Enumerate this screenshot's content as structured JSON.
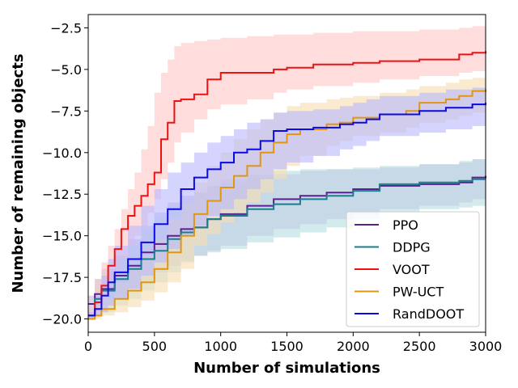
{
  "chart_data": {
    "type": "line",
    "title": "",
    "xlabel": "Number of simulations",
    "ylabel": "Number of remaining objects",
    "xlim": [
      0,
      3000
    ],
    "ylim": [
      -20.8,
      -1.7
    ],
    "xticks": [
      0,
      500,
      1000,
      1500,
      2000,
      2500,
      3000
    ],
    "xtick_labels": [
      "0",
      "500",
      "1000",
      "1500",
      "2000",
      "2500",
      "3000"
    ],
    "yticks": [
      -20.0,
      -17.5,
      -15.0,
      -12.5,
      -10.0,
      -7.5,
      -5.0,
      -2.5
    ],
    "ytick_labels": [
      "−20.0",
      "−17.5",
      "−15.0",
      "−12.5",
      "−10.0",
      "−7.5",
      "−5.0",
      "−2.5"
    ],
    "grid": false,
    "legend_position": "bottom-right",
    "series": [
      {
        "name": "PPO",
        "color": "#5b1f91",
        "x": [
          0,
          50,
          100,
          200,
          300,
          400,
          500,
          600,
          700,
          800,
          900,
          1000,
          1200,
          1400,
          1600,
          1800,
          2000,
          2200,
          2500,
          2800,
          2900,
          3000
        ],
        "y": [
          -19.1,
          -18.5,
          -18.2,
          -17.4,
          -16.8,
          -16.0,
          -15.5,
          -15.0,
          -14.6,
          -14.5,
          -14.0,
          -13.7,
          -13.2,
          -12.8,
          -12.6,
          -12.4,
          -12.2,
          -12.0,
          -11.9,
          -11.8,
          -11.5,
          -11.4
        ],
        "band_low": [
          -19.6,
          -19.4,
          -19.2,
          -18.6,
          -18.2,
          -17.8,
          -17.2,
          -16.8,
          -16.5,
          -16.2,
          -15.9,
          -15.6,
          -15.0,
          -14.6,
          -14.3,
          -14.0,
          -13.7,
          -13.4,
          -13.2,
          -13.0,
          -12.8,
          -12.6
        ],
        "band_high": [
          -18.6,
          -17.6,
          -17.0,
          -16.2,
          -15.2,
          -14.4,
          -13.6,
          -13.0,
          -12.6,
          -12.4,
          -12.0,
          -11.8,
          -11.5,
          -11.3,
          -11.1,
          -11.0,
          -11.0,
          -10.9,
          -10.7,
          -10.6,
          -10.4,
          -10.3
        ],
        "band_color": "#c8b4e0"
      },
      {
        "name": "DDPG",
        "color": "#1a7f8c",
        "x": [
          0,
          50,
          100,
          200,
          300,
          400,
          500,
          600,
          700,
          800,
          900,
          1000,
          1200,
          1400,
          1600,
          1800,
          2000,
          2200,
          2500,
          2800,
          2900,
          3000
        ],
        "y": [
          -19.8,
          -18.8,
          -18.3,
          -17.6,
          -17.0,
          -16.4,
          -15.9,
          -15.2,
          -14.8,
          -14.5,
          -14.0,
          -13.8,
          -13.4,
          -13.1,
          -12.8,
          -12.6,
          -12.3,
          -11.9,
          -11.8,
          -11.7,
          -11.6,
          -11.6
        ],
        "band_low": [
          -20.0,
          -19.8,
          -19.6,
          -19.2,
          -18.8,
          -18.3,
          -17.8,
          -17.2,
          -16.6,
          -16.2,
          -16.0,
          -15.8,
          -15.4,
          -15.1,
          -14.8,
          -14.5,
          -14.0,
          -13.6,
          -13.4,
          -13.3,
          -13.2,
          -13.1
        ],
        "band_high": [
          -19.4,
          -17.6,
          -17.2,
          -16.4,
          -15.6,
          -14.6,
          -13.8,
          -13.2,
          -12.9,
          -12.5,
          -12.0,
          -11.6,
          -11.3,
          -11.1,
          -11.0,
          -11.0,
          -10.9,
          -10.8,
          -10.7,
          -10.5,
          -10.4,
          -10.3
        ],
        "band_color": "#b7dde3"
      },
      {
        "name": "VOOT",
        "color": "#ee1111",
        "x": [
          0,
          50,
          100,
          150,
          200,
          250,
          300,
          350,
          400,
          450,
          500,
          550,
          600,
          650,
          700,
          800,
          900,
          1000,
          1200,
          1400,
          1500,
          1700,
          2000,
          2200,
          2500,
          2800,
          2900,
          3000
        ],
        "y": [
          -19.8,
          -19.0,
          -18.0,
          -16.8,
          -15.8,
          -14.6,
          -13.8,
          -13.2,
          -12.6,
          -11.9,
          -11.2,
          -9.2,
          -8.2,
          -6.9,
          -6.8,
          -6.5,
          -5.6,
          -5.2,
          -5.2,
          -5.0,
          -4.9,
          -4.7,
          -4.6,
          -4.5,
          -4.4,
          -4.1,
          -4.0,
          -3.9
        ],
        "band_low": [
          -20.0,
          -19.6,
          -18.8,
          -18.0,
          -17.2,
          -16.4,
          -15.6,
          -15.0,
          -14.4,
          -13.6,
          -12.8,
          -11.6,
          -10.6,
          -9.4,
          -8.8,
          -8.0,
          -7.4,
          -7.1,
          -6.8,
          -6.4,
          -6.2,
          -6.0,
          -5.8,
          -5.6,
          -5.4,
          -5.2,
          -5.1,
          -5.0
        ],
        "band_high": [
          -19.4,
          -17.6,
          -16.6,
          -15.6,
          -14.6,
          -13.4,
          -12.2,
          -11.2,
          -9.8,
          -8.4,
          -6.4,
          -5.2,
          -4.4,
          -3.6,
          -3.4,
          -3.3,
          -3.2,
          -3.1,
          -3.0,
          -2.9,
          -2.9,
          -2.8,
          -2.7,
          -2.7,
          -2.6,
          -2.5,
          -2.4,
          -2.4
        ],
        "band_color": "#ffc7c7"
      },
      {
        "name": "PW-UCT",
        "color": "#e0960f",
        "x": [
          0,
          50,
          100,
          200,
          300,
          400,
          500,
          600,
          700,
          800,
          900,
          1000,
          1100,
          1200,
          1300,
          1400,
          1500,
          1600,
          1800,
          1900,
          2000,
          2200,
          2400,
          2500,
          2700,
          2800,
          2900,
          3000
        ],
        "y": [
          -20.0,
          -19.8,
          -19.4,
          -18.8,
          -18.3,
          -17.8,
          -17.0,
          -16.0,
          -15.0,
          -13.7,
          -12.9,
          -12.1,
          -11.4,
          -10.8,
          -10.0,
          -9.4,
          -8.9,
          -8.6,
          -8.3,
          -8.2,
          -7.9,
          -7.7,
          -7.5,
          -7.0,
          -6.8,
          -6.6,
          -6.3,
          -6.2
        ],
        "band_low": [
          -20.0,
          -20.0,
          -19.8,
          -19.6,
          -19.3,
          -18.9,
          -18.4,
          -17.8,
          -17.0,
          -15.6,
          -14.9,
          -14.2,
          -13.6,
          -13.0,
          -12.4,
          -11.6,
          -10.8,
          -10.2,
          -9.6,
          -9.3,
          -9.0,
          -8.8,
          -8.5,
          -8.2,
          -8.0,
          -7.8,
          -7.6,
          -7.5
        ],
        "band_high": [
          -19.8,
          -19.2,
          -18.8,
          -17.8,
          -17.0,
          -16.2,
          -15.2,
          -14.0,
          -13.0,
          -11.8,
          -10.8,
          -10.0,
          -9.2,
          -8.6,
          -8.0,
          -7.6,
          -7.2,
          -7.0,
          -6.8,
          -6.7,
          -6.6,
          -6.4,
          -6.2,
          -6.0,
          -5.8,
          -5.6,
          -5.5,
          -5.3
        ],
        "band_color": "#f7deb0"
      },
      {
        "name": "RandDOOT",
        "color": "#0a0ae6",
        "x": [
          0,
          50,
          100,
          150,
          200,
          300,
          400,
          500,
          600,
          700,
          800,
          900,
          1000,
          1100,
          1200,
          1300,
          1400,
          1500,
          1700,
          1900,
          2000,
          2100,
          2200,
          2500,
          2700,
          2900,
          3000
        ],
        "y": [
          -19.8,
          -19.4,
          -18.6,
          -17.8,
          -17.2,
          -16.4,
          -15.4,
          -14.3,
          -13.4,
          -12.2,
          -11.5,
          -11.0,
          -10.6,
          -10.0,
          -9.8,
          -9.3,
          -8.7,
          -8.6,
          -8.5,
          -8.3,
          -8.2,
          -8.0,
          -7.7,
          -7.5,
          -7.3,
          -7.1,
          -7.0
        ],
        "band_low": [
          -20.0,
          -19.8,
          -19.6,
          -19.2,
          -18.8,
          -18.2,
          -17.4,
          -16.6,
          -15.8,
          -15.0,
          -14.4,
          -13.8,
          -13.4,
          -12.8,
          -12.2,
          -11.6,
          -11.0,
          -10.6,
          -10.2,
          -9.8,
          -9.6,
          -9.3,
          -9.0,
          -8.8,
          -8.6,
          -8.4,
          -8.2
        ],
        "band_high": [
          -19.6,
          -18.6,
          -17.4,
          -16.4,
          -15.6,
          -14.4,
          -13.2,
          -12.2,
          -11.2,
          -10.6,
          -10.0,
          -9.4,
          -9.0,
          -8.6,
          -8.2,
          -8.0,
          -7.6,
          -7.5,
          -7.4,
          -7.2,
          -7.0,
          -6.8,
          -6.6,
          -6.4,
          -6.2,
          -6.1,
          -6.0
        ],
        "band_color": "#b8b8ff"
      }
    ]
  }
}
